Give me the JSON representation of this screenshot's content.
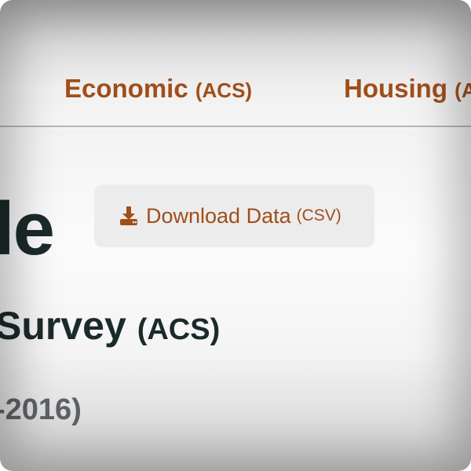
{
  "nav": {
    "economic": {
      "label": "Economic",
      "abbr": "(ACS)"
    },
    "housing": {
      "label": "Housing",
      "abbr": "(A"
    }
  },
  "heading": {
    "title_fragment": "le",
    "subtitle_fragment": "Survey",
    "subtitle_abbr": "(ACS)",
    "years_fragment": "-2016)"
  },
  "download": {
    "label": "Download Data",
    "format": "(CSV)",
    "icon": "download-icon"
  },
  "colors": {
    "accent": "#a04e1a",
    "heading": "#1b2a2a",
    "muted": "#5e6266",
    "button_bg": "#ececec"
  }
}
